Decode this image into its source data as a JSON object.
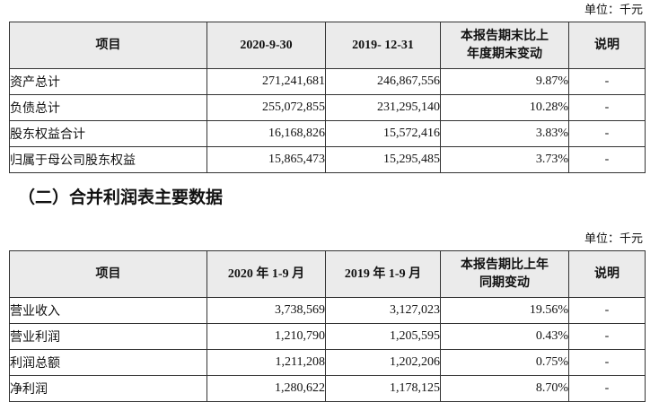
{
  "section": {
    "heading": "（二）合并利润表主要数据"
  },
  "colors": {
    "header_bg": "#ebebeb",
    "border": "#333333",
    "text": "#111111"
  },
  "balance_table": {
    "unit_label": "单位：千元",
    "headers": {
      "item": "项目",
      "current": "2020-9-30",
      "prior": "2019- 12-31",
      "change": "本报告期末比上\n年度期末变动",
      "note": "说明"
    },
    "rows": [
      {
        "item": "资产总计",
        "current": "271,241,681",
        "prior": "246,867,556",
        "change": "9.87%",
        "note": "-"
      },
      {
        "item": "负债总计",
        "current": "255,072,855",
        "prior": "231,295,140",
        "change": "10.28%",
        "note": "-"
      },
      {
        "item": "股东权益合计",
        "current": "16,168,826",
        "prior": "15,572,416",
        "change": "3.83%",
        "note": "-"
      },
      {
        "item": "归属于母公司股东权益",
        "current": "15,865,473",
        "prior": "15,295,485",
        "change": "3.73%",
        "note": "-"
      }
    ]
  },
  "income_table": {
    "unit_label": "单位：千元",
    "headers": {
      "item": "项目",
      "current": "2020 年 1-9 月",
      "prior": "2019 年 1-9 月",
      "change": "本报告期比上年\n同期变动",
      "note": "说明"
    },
    "rows": [
      {
        "item": "营业收入",
        "current": "3,738,569",
        "prior": "3,127,023",
        "change": "19.56%",
        "note": "-"
      },
      {
        "item": "营业利润",
        "current": "1,210,790",
        "prior": "1,205,595",
        "change": "0.43%",
        "note": "-"
      },
      {
        "item": "利润总额",
        "current": "1,211,208",
        "prior": "1,202,206",
        "change": "0.75%",
        "note": "-"
      },
      {
        "item": "净利润",
        "current": "1,280,622",
        "prior": "1,178,125",
        "change": "8.70%",
        "note": "-"
      }
    ]
  }
}
